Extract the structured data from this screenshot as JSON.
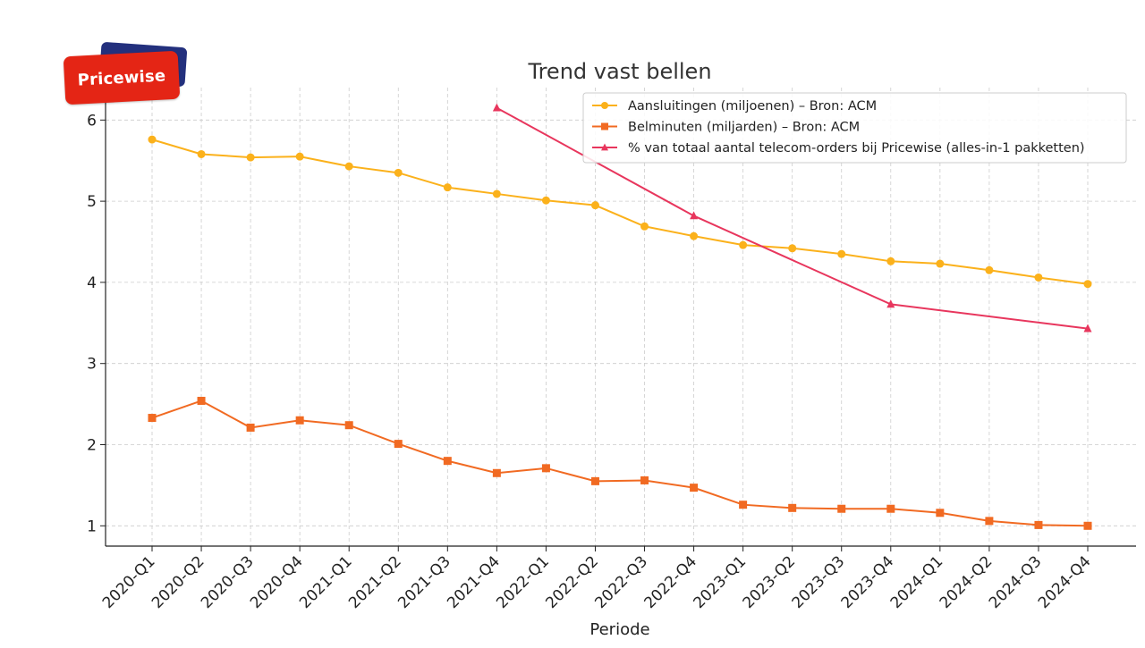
{
  "logo": {
    "text": "Pricewise"
  },
  "chart_data": {
    "type": "line",
    "title": "Trend vast bellen",
    "xlabel": "Periode",
    "ylabel": "",
    "categories": [
      "2020-Q1",
      "2020-Q2",
      "2020-Q3",
      "2020-Q4",
      "2021-Q1",
      "2021-Q2",
      "2021-Q3",
      "2021-Q4",
      "2022-Q1",
      "2022-Q2",
      "2022-Q3",
      "2022-Q4",
      "2023-Q1",
      "2023-Q2",
      "2023-Q3",
      "2023-Q4",
      "2024-Q1",
      "2024-Q2",
      "2024-Q3",
      "2024-Q4"
    ],
    "yticks": [
      1,
      2,
      3,
      4,
      5,
      6
    ],
    "ylim": [
      0.75,
      6.4
    ],
    "grid": true,
    "legend_position": "top-right",
    "series": [
      {
        "name": "Aansluitingen (miljoenen) – Bron: ACM",
        "color": "#fbb11b",
        "marker": "circle",
        "values": [
          5.76,
          5.58,
          5.54,
          5.55,
          5.43,
          5.35,
          5.17,
          5.09,
          5.01,
          4.95,
          4.69,
          4.57,
          4.46,
          4.42,
          4.35,
          4.26,
          4.23,
          4.15,
          4.06,
          3.98
        ]
      },
      {
        "name": "Belminuten (miljarden) – Bron: ACM",
        "color": "#f16a22",
        "marker": "square",
        "values": [
          2.33,
          2.54,
          2.21,
          2.3,
          2.24,
          2.01,
          1.8,
          1.65,
          1.71,
          1.55,
          1.56,
          1.47,
          1.26,
          1.22,
          1.21,
          1.21,
          1.16,
          1.06,
          1.01,
          1.0
        ]
      },
      {
        "name": "% van totaal aantal telecom-orders bij Pricewise (alles-in-1 pakketten)",
        "color": "#e8365d",
        "marker": "triangle",
        "values": [
          null,
          null,
          null,
          null,
          null,
          null,
          null,
          6.15,
          null,
          null,
          null,
          4.82,
          null,
          null,
          null,
          3.73,
          null,
          null,
          null,
          3.43
        ]
      }
    ]
  }
}
